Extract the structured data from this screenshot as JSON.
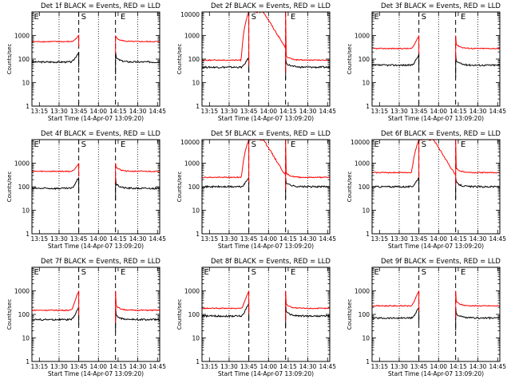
{
  "chart_data": [
    {
      "type": "line",
      "title": "Det 1f BLACK = Events, RED = LLD",
      "xlabel": "Start Time (14-Apr-07 13:09:20)",
      "ylabel": "Counts/sec",
      "yscale": "log",
      "ylim": [
        1,
        10000
      ],
      "xticks": [
        "13:15",
        "13:30",
        "13:45",
        "14:00",
        "14:15",
        "14:30",
        "14:45"
      ],
      "yticks": [
        "1",
        "10",
        "100",
        "1000"
      ],
      "markers": [
        {
          "label": "E",
          "x": "13:09"
        },
        {
          "label": "S",
          "x": "13:45"
        },
        {
          "label": "E",
          "x": "14:15"
        }
      ],
      "series": [
        {
          "name": "BLACK = Events",
          "color": "#000000",
          "level": 75,
          "peak": 200
        },
        {
          "name": "RED = LLD",
          "color": "#ff0000",
          "level": 550,
          "peak": 1000
        }
      ]
    },
    {
      "type": "line",
      "title": "Det 2f BLACK = Events, RED = LLD",
      "xlabel": "Start Time (14-Apr-07 13:09:20)",
      "ylabel": "Counts/sec",
      "yscale": "log",
      "ylim": [
        1,
        10000
      ],
      "xticks": [
        "13:15",
        "13:30",
        "13:45",
        "14:00",
        "14:15",
        "14:30",
        "14:45"
      ],
      "yticks": [
        "1",
        "10",
        "100",
        "1000",
        "10000"
      ],
      "markers": [
        {
          "label": "S",
          "x": "13:45"
        },
        {
          "label": "E",
          "x": "14:15"
        }
      ],
      "series": [
        {
          "name": "BLACK = Events",
          "color": "#000000",
          "level": 45,
          "peak": 120
        },
        {
          "name": "RED = LLD",
          "color": "#ff0000",
          "level": 90,
          "peak": 10000
        }
      ]
    },
    {
      "type": "line",
      "title": "Det 3f BLACK = Events, RED = LLD",
      "xlabel": "Start Time (14-Apr-07 13:09:20)",
      "ylabel": "Counts/sec",
      "yscale": "log",
      "ylim": [
        1,
        10000
      ],
      "xticks": [
        "13:15",
        "13:30",
        "13:45",
        "14:00",
        "14:15",
        "14:30",
        "14:45"
      ],
      "yticks": [
        "1",
        "10",
        "100",
        "1000"
      ],
      "markers": [
        {
          "label": "E",
          "x": "13:09"
        },
        {
          "label": "S",
          "x": "13:45"
        },
        {
          "label": "E",
          "x": "14:15"
        }
      ],
      "series": [
        {
          "name": "BLACK = Events",
          "color": "#000000",
          "level": 55,
          "peak": 150
        },
        {
          "name": "RED = LLD",
          "color": "#ff0000",
          "level": 280,
          "peak": 1000
        }
      ]
    },
    {
      "type": "line",
      "title": "Det 4f BLACK = Events, RED = LLD",
      "xlabel": "Start Time (14-Apr-07 13:09:20)",
      "ylabel": "Counts/sec",
      "yscale": "log",
      "ylim": [
        1,
        10000
      ],
      "xticks": [
        "13:15",
        "13:30",
        "13:45",
        "14:00",
        "14:15",
        "14:30",
        "14:45"
      ],
      "yticks": [
        "1",
        "10",
        "100",
        "1000"
      ],
      "markers": [
        {
          "label": "E",
          "x": "13:09"
        },
        {
          "label": "S",
          "x": "13:45"
        },
        {
          "label": "E",
          "x": "14:15"
        }
      ],
      "series": [
        {
          "name": "BLACK = Events",
          "color": "#000000",
          "level": 85,
          "peak": 250
        },
        {
          "name": "RED = LLD",
          "color": "#ff0000",
          "level": 450,
          "peak": 1000
        }
      ]
    },
    {
      "type": "line",
      "title": "Det 5f BLACK = Events, RED = LLD",
      "xlabel": "Start Time (14-Apr-07 13:09:20)",
      "ylabel": "Counts/sec",
      "yscale": "log",
      "ylim": [
        1,
        10000
      ],
      "xticks": [
        "13:15",
        "13:30",
        "13:45",
        "14:00",
        "14:15",
        "14:30",
        "14:45"
      ],
      "yticks": [
        "1",
        "10",
        "100",
        "1000",
        "10000"
      ],
      "markers": [
        {
          "label": "S",
          "x": "13:45"
        },
        {
          "label": "E",
          "x": "14:15"
        }
      ],
      "series": [
        {
          "name": "BLACK = Events",
          "color": "#000000",
          "level": 100,
          "peak": 250
        },
        {
          "name": "RED = LLD",
          "color": "#ff0000",
          "level": 250,
          "peak": 10000
        }
      ]
    },
    {
      "type": "line",
      "title": "Det 6f BLACK = Events, RED = LLD",
      "xlabel": "Start Time (14-Apr-07 13:09:20)",
      "ylabel": "Counts/sec",
      "yscale": "log",
      "ylim": [
        1,
        10000
      ],
      "xticks": [
        "13:15",
        "13:30",
        "13:45",
        "14:00",
        "14:15",
        "14:30",
        "14:45"
      ],
      "yticks": [
        "1",
        "10",
        "100",
        "1000",
        "10000"
      ],
      "markers": [
        {
          "label": "E",
          "x": "13:09"
        },
        {
          "label": "S",
          "x": "13:45"
        },
        {
          "label": "E",
          "x": "14:15"
        }
      ],
      "series": [
        {
          "name": "BLACK = Events",
          "color": "#000000",
          "level": 100,
          "peak": 250
        },
        {
          "name": "RED = LLD",
          "color": "#ff0000",
          "level": 400,
          "peak": 10000
        }
      ]
    },
    {
      "type": "line",
      "title": "Det 7f BLACK = Events, RED = LLD",
      "xlabel": "Start Time (14-Apr-07 13:09:20)",
      "ylabel": "Counts/sec",
      "yscale": "log",
      "ylim": [
        1,
        10000
      ],
      "xticks": [
        "13:15",
        "13:30",
        "13:45",
        "14:00",
        "14:15",
        "14:30",
        "14:45"
      ],
      "yticks": [
        "1",
        "10",
        "100",
        "1000"
      ],
      "markers": [
        {
          "label": "E",
          "x": "13:09"
        },
        {
          "label": "S",
          "x": "13:45"
        },
        {
          "label": "E",
          "x": "14:15"
        }
      ],
      "series": [
        {
          "name": "BLACK = Events",
          "color": "#000000",
          "level": 60,
          "peak": 200
        },
        {
          "name": "RED = LLD",
          "color": "#ff0000",
          "level": 150,
          "peak": 1000
        }
      ]
    },
    {
      "type": "line",
      "title": "Det 8f BLACK = Events, RED = LLD",
      "xlabel": "Start Time (14-Apr-07 13:09:20)",
      "ylabel": "Counts/sec",
      "yscale": "log",
      "ylim": [
        1,
        10000
      ],
      "xticks": [
        "13:15",
        "13:30",
        "13:45",
        "14:00",
        "14:15",
        "14:30",
        "14:45"
      ],
      "yticks": [
        "1",
        "10",
        "100",
        "1000"
      ],
      "markers": [
        {
          "label": "E",
          "x": "13:09"
        },
        {
          "label": "S",
          "x": "13:45"
        },
        {
          "label": "E",
          "x": "14:15"
        }
      ],
      "series": [
        {
          "name": "BLACK = Events",
          "color": "#000000",
          "level": 85,
          "peak": 300
        },
        {
          "name": "RED = LLD",
          "color": "#ff0000",
          "level": 180,
          "peak": 1000
        }
      ]
    },
    {
      "type": "line",
      "title": "Det 9f BLACK = Events, RED = LLD",
      "xlabel": "Start Time (14-Apr-07 13:09:20)",
      "ylabel": "Counts/sec",
      "yscale": "log",
      "ylim": [
        1,
        10000
      ],
      "xticks": [
        "13:15",
        "13:30",
        "13:45",
        "14:00",
        "14:15",
        "14:30",
        "14:45"
      ],
      "yticks": [
        "1",
        "10",
        "100",
        "1000"
      ],
      "markers": [
        {
          "label": "E",
          "x": "13:09"
        },
        {
          "label": "S",
          "x": "13:45"
        },
        {
          "label": "E",
          "x": "14:15"
        }
      ],
      "series": [
        {
          "name": "BLACK = Events",
          "color": "#000000",
          "level": 70,
          "peak": 200
        },
        {
          "name": "RED = LLD",
          "color": "#ff0000",
          "level": 230,
          "peak": 1000
        }
      ]
    }
  ]
}
